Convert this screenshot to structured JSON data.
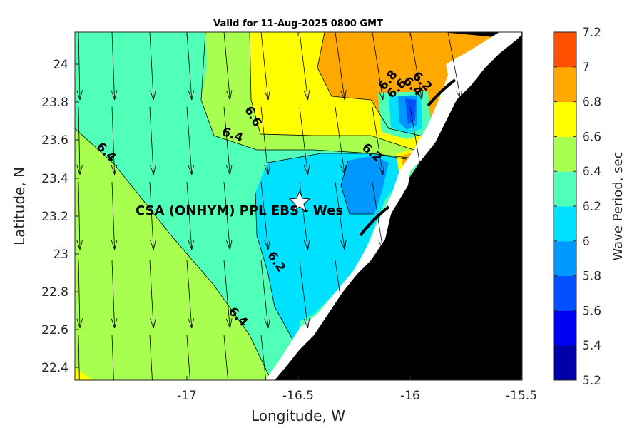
{
  "title": "Valid for 11-Aug-2025 0800 GMT",
  "x_axis": {
    "label": "Longitude, W",
    "ticks": [
      "-17",
      "-16.5",
      "-16",
      "-15.5"
    ]
  },
  "y_axis": {
    "label": "Latitude, N",
    "ticks": [
      "24",
      "23.8",
      "23.6",
      "23.4",
      "23.2",
      "23",
      "22.8",
      "22.6",
      "22.4"
    ]
  },
  "colorbar": {
    "label": "Wave Period, sec",
    "ticks": [
      "7.2",
      "7",
      "6.8",
      "6.6",
      "6.4",
      "6.2",
      "6",
      "5.8",
      "5.6",
      "5.4",
      "5.2"
    ],
    "colors": [
      "#0000a8",
      "#0000f0",
      "#0050ff",
      "#0098ff",
      "#00e0ff",
      "#50ffb8",
      "#a8ff50",
      "#ffff00",
      "#ffa800",
      "#ff5000"
    ]
  },
  "station": {
    "label": "CSA (ONHYM) PPL EBS  - Wes"
  },
  "contour_labels": [
    {
      "text": "6.4"
    },
    {
      "text": "6.6"
    },
    {
      "text": "6.4"
    },
    {
      "text": "6.2"
    },
    {
      "text": "6.4"
    },
    {
      "text": "6.2"
    },
    {
      "text": "6.8"
    },
    {
      "text": "6.6"
    },
    {
      "text": "6.4"
    },
    {
      "text": "6.2"
    }
  ],
  "chart_data": {
    "type": "heatmap",
    "title": "Valid for 11-Aug-2025 0800 GMT",
    "xlabel": "Longitude, W",
    "ylabel": "Latitude, N",
    "xlim": [
      -17.48,
      -15.5
    ],
    "ylim": [
      22.33,
      24.16
    ],
    "colorbar_label": "Wave Period, sec",
    "colorbar_range": [
      5.2,
      7.2
    ],
    "land_color": "#000000",
    "vector_field": "wave direction arrows, mostly pointing south"
  }
}
